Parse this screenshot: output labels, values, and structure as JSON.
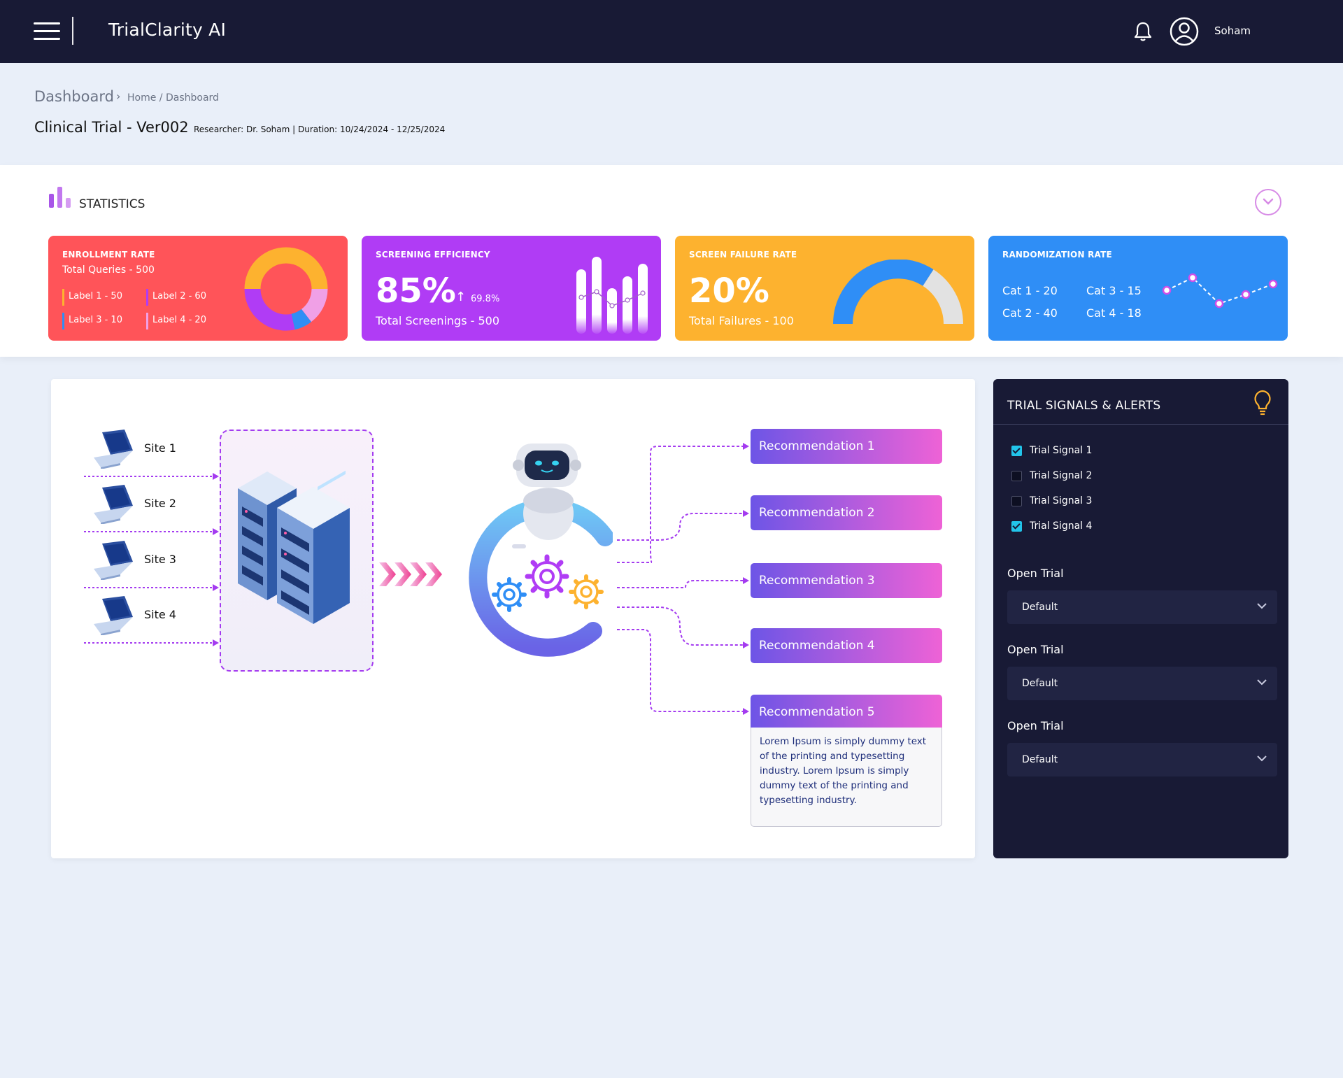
{
  "header": {
    "app_title": "TrialClarity AI",
    "user_name": "Soham"
  },
  "breadcrumb": {
    "current": "Dashboard",
    "path": "Home / Dashboard"
  },
  "trial": {
    "title": "Clinical Trial - Ver002",
    "meta": "Researcher: Dr. Soham  |  Duration: 10/24/2024  -  12/25/2024"
  },
  "statistics": {
    "label": "STATISTICS",
    "enrollment": {
      "title": "ENROLLMENT RATE",
      "subtitle": "Total Queries - 500",
      "legend": [
        "Label 1 - 50",
        "Label 2 - 60",
        "Label 3 - 10",
        "Label 4 - 20"
      ],
      "colors": [
        "#fdb22f",
        "#b03cf5",
        "#2f8ef6",
        "#f0a0e6"
      ]
    },
    "screening": {
      "title": "SCREENING EFFICIENCY",
      "value": "85%",
      "delta": "69.8%",
      "subtitle": "Total Screenings - 500"
    },
    "failure": {
      "title": "SCREEN FAILURE RATE",
      "value": "20%",
      "subtitle": "Total Failures - 100"
    },
    "randomization": {
      "title": "RANDOMIZATION RATE",
      "cats": [
        "Cat 1 - 20",
        "Cat 3 - 15",
        "Cat 2 - 40",
        "Cat 4 - 18"
      ]
    }
  },
  "flow": {
    "sites": [
      "Site 1",
      "Site 2",
      "Site 3",
      "Site 4"
    ],
    "recommendations": [
      "Recommendation 1",
      "Recommendation 2",
      "Recommendation 3",
      "Recommendation 4",
      "Recommendation 5"
    ],
    "detail_text": "Lorem Ipsum is simply dummy text of the printing and typesetting industry.  Lorem Ipsum is simply dummy text of the printing and typesetting industry."
  },
  "alerts": {
    "title": "TRIAL SIGNALS & ALERTS",
    "signals": [
      {
        "label": "Trial Signal 1",
        "checked": true
      },
      {
        "label": "Trial Signal 2",
        "checked": false
      },
      {
        "label": "Trial Signal 3",
        "checked": false
      },
      {
        "label": "Trial Signal 4",
        "checked": true
      }
    ],
    "selects": [
      {
        "label": "Open Trial",
        "value": "Default"
      },
      {
        "label": "Open Trial",
        "value": "Default"
      },
      {
        "label": "Open Trial",
        "value": "Default"
      }
    ]
  }
}
